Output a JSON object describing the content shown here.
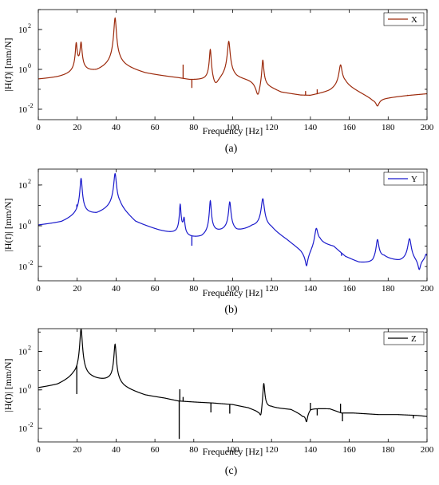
{
  "chart_data": [
    {
      "type": "line",
      "caption": "(a)",
      "xlabel": "Frequency [Hz]",
      "ylabel": "|H(f)| [mm/N]",
      "xlim": [
        0,
        200
      ],
      "ylim": [
        0.003,
        1000
      ],
      "yscale": "log",
      "xticks": [
        "0",
        "20",
        "40",
        "60",
        "80",
        "100",
        "120",
        "140",
        "160",
        "180",
        "200"
      ],
      "yticks": [
        {
          "base": "10",
          "exp": "2",
          "value": 100
        },
        {
          "base": "10",
          "exp": "0",
          "value": 1
        },
        {
          "base": "10",
          "exp": "-2",
          "value": 0.01
        }
      ],
      "grid": false,
      "legend_position": "top-right",
      "series": [
        {
          "name": "X",
          "color": "#9c2a0c",
          "baseline": [
            [
              0,
              0.25
            ],
            [
              10,
              0.28
            ],
            [
              30,
              0.45
            ],
            [
              38,
              0.9
            ],
            [
              42,
              0.9
            ],
            [
              55,
              0.45
            ],
            [
              72,
              0.28
            ],
            [
              78,
              0.22
            ],
            [
              86,
              0.2
            ],
            [
              92,
              0.2
            ],
            [
              97,
              0.3
            ],
            [
              102,
              0.25
            ],
            [
              112,
              0.25
            ],
            [
              118,
              0.12
            ],
            [
              125,
              0.06
            ],
            [
              135,
              0.042
            ],
            [
              140,
              0.04
            ],
            [
              150,
              0.06
            ],
            [
              158,
              0.12
            ],
            [
              165,
              0.06
            ],
            [
              172,
              0.03
            ],
            [
              180,
              0.035
            ],
            [
              190,
              0.045
            ],
            [
              200,
              0.055
            ]
          ],
          "features": [
            {
              "type": "peak",
              "f": 19.5,
              "a": 9,
              "w": 0.45
            },
            {
              "type": "peak",
              "f": 22,
              "a": 10,
              "w": 0.5
            },
            {
              "type": "peak",
              "f": 39.5,
              "a": 300,
              "w": 0.7
            },
            {
              "type": "spike",
              "f": 74.5,
              "a": 1.4
            },
            {
              "type": "spike",
              "f": 79,
              "a": 0.1
            },
            {
              "type": "peak",
              "f": 88.5,
              "a": 12,
              "w": 0.5
            },
            {
              "type": "antires",
              "f": 91,
              "a": 0.06,
              "w": 1.5
            },
            {
              "type": "peak",
              "f": 98,
              "a": 25,
              "w": 0.7
            },
            {
              "type": "antires",
              "f": 113,
              "a": 0.02,
              "w": 1.2
            },
            {
              "type": "peak",
              "f": 115.5,
              "a": 6,
              "w": 0.5
            },
            {
              "type": "spike",
              "f": 137.5,
              "a": 0.07
            },
            {
              "type": "spike",
              "f": 143.5,
              "a": 0.08
            },
            {
              "type": "peak",
              "f": 155.5,
              "a": 1.6,
              "w": 0.8
            },
            {
              "type": "antires",
              "f": 174.5,
              "a": 0.012,
              "w": 0.8
            },
            {
              "type": "spike",
              "f": 187,
              "a": 0.045
            },
            {
              "type": "spike",
              "f": 190,
              "a": 0.05
            }
          ]
        }
      ]
    },
    {
      "type": "line",
      "caption": "(b)",
      "xlabel": "Frequency [Hz]",
      "ylabel": "|H(f)| [mm/N]",
      "xlim": [
        0,
        200
      ],
      "ylim": [
        0.002,
        600
      ],
      "yscale": "log",
      "xticks": [
        "0",
        "20",
        "40",
        "60",
        "80",
        "100",
        "120",
        "140",
        "160",
        "180",
        "200"
      ],
      "yticks": [
        {
          "base": "10",
          "exp": "2",
          "value": 100
        },
        {
          "base": "10",
          "exp": "0",
          "value": 1
        },
        {
          "base": "10",
          "exp": "-2",
          "value": 0.01
        }
      ],
      "grid": false,
      "legend_position": "top-right",
      "series": [
        {
          "name": "Y",
          "color": "#1a1acc",
          "baseline": [
            [
              0,
              0.8
            ],
            [
              12,
              1.0
            ],
            [
              20,
              1.8
            ],
            [
              30,
              2.0
            ],
            [
              38,
              4
            ],
            [
              42,
              4
            ],
            [
              50,
              0.9
            ],
            [
              62,
              0.35
            ],
            [
              70,
              0.2
            ],
            [
              76,
              0.12
            ],
            [
              84,
              0.12
            ],
            [
              90,
              0.18
            ],
            [
              96,
              0.22
            ],
            [
              102,
              0.22
            ],
            [
              110,
              0.4
            ],
            [
              120,
              0.35
            ],
            [
              128,
              0.12
            ],
            [
              135,
              0.04
            ],
            [
              138,
              0.02
            ],
            [
              145,
              0.08
            ],
            [
              152,
              0.06
            ],
            [
              158,
              0.02
            ],
            [
              165,
              0.01
            ],
            [
              172,
              0.008
            ],
            [
              178,
              0.015
            ],
            [
              186,
              0.01
            ],
            [
              192,
              0.01
            ],
            [
              200,
              0.015
            ]
          ],
          "features": [
            {
              "type": "spike",
              "f": 19.8,
              "a": 2.5
            },
            {
              "type": "peak",
              "f": 22,
              "a": 150,
              "w": 0.6
            },
            {
              "type": "peak",
              "f": 39.5,
              "a": 250,
              "w": 0.7
            },
            {
              "type": "peak",
              "f": 73,
              "a": 5,
              "w": 0.4
            },
            {
              "type": "peak",
              "f": 75,
              "a": 0.8,
              "w": 0.4
            },
            {
              "type": "spike",
              "f": 79,
              "a": 0.07
            },
            {
              "type": "peak",
              "f": 88.5,
              "a": 9,
              "w": 0.5
            },
            {
              "type": "peak",
              "f": 98.5,
              "a": 8,
              "w": 0.6
            },
            {
              "type": "peak",
              "f": 115.5,
              "a": 14,
              "w": 0.8
            },
            {
              "type": "antires",
              "f": 138,
              "a": 0.005,
              "w": 0.6
            },
            {
              "type": "peak",
              "f": 143,
              "a": 0.6,
              "w": 0.8
            },
            {
              "type": "spike",
              "f": 156,
              "a": 0.03
            },
            {
              "type": "peak",
              "f": 174.5,
              "a": 0.15,
              "w": 0.7
            },
            {
              "type": "peak",
              "f": 191,
              "a": 0.2,
              "w": 0.9
            },
            {
              "type": "antires",
              "f": 196,
              "a": 0.003,
              "w": 0.6
            },
            {
              "type": "peak",
              "f": 199.5,
              "a": 0.03,
              "w": 0.5
            }
          ]
        }
      ]
    },
    {
      "type": "line",
      "caption": "(c)",
      "xlabel": "Frequency [Hz]",
      "ylabel": "|H(f)| [mm/N]",
      "xlim": [
        0,
        200
      ],
      "ylim": [
        0.002,
        1500
      ],
      "yscale": "log",
      "xticks": [
        "0",
        "20",
        "40",
        "60",
        "80",
        "100",
        "120",
        "140",
        "160",
        "180",
        "200"
      ],
      "yticks": [
        {
          "base": "10",
          "exp": "2",
          "value": 100
        },
        {
          "base": "10",
          "exp": "0",
          "value": 1
        },
        {
          "base": "10",
          "exp": "-2",
          "value": 0.01
        }
      ],
      "grid": false,
      "legend_position": "top-right",
      "series": [
        {
          "name": "Z",
          "color": "#000000",
          "baseline": [
            [
              0,
              1.0
            ],
            [
              10,
              1.3
            ],
            [
              18,
              2.5
            ],
            [
              28,
              2.0
            ],
            [
              36,
              1.5
            ],
            [
              44,
              0.8
            ],
            [
              55,
              0.4
            ],
            [
              65,
              0.3
            ],
            [
              72,
              0.22
            ],
            [
              80,
              0.2
            ],
            [
              90,
              0.18
            ],
            [
              100,
              0.15
            ],
            [
              108,
              0.1
            ],
            [
              113,
              0.06
            ],
            [
              120,
              0.1
            ],
            [
              130,
              0.09
            ],
            [
              136,
              0.05
            ],
            [
              140,
              0.11
            ],
            [
              150,
              0.1
            ],
            [
              156,
              0.06
            ],
            [
              162,
              0.06
            ],
            [
              175,
              0.05
            ],
            [
              185,
              0.05
            ],
            [
              195,
              0.045
            ],
            [
              200,
              0.04
            ]
          ],
          "features": [
            {
              "type": "spike",
              "f": 19.8,
              "a": 0.08
            },
            {
              "type": "peak",
              "f": 22,
              "a": 1200,
              "w": 0.7
            },
            {
              "type": "peak",
              "f": 39.5,
              "a": 180,
              "w": 0.6
            },
            {
              "type": "spike",
              "f": 72.5,
              "a": 0.003
            },
            {
              "type": "spike",
              "f": 72.8,
              "a": 1.0
            },
            {
              "type": "spike",
              "f": 74.5,
              "a": 0.4
            },
            {
              "type": "spike",
              "f": 88.8,
              "a": 0.07
            },
            {
              "type": "spike",
              "f": 98.5,
              "a": 0.06
            },
            {
              "type": "antires",
              "f": 114.5,
              "a": 0.015,
              "w": 0.6
            },
            {
              "type": "peak",
              "f": 116,
              "a": 3.5,
              "w": 0.5
            },
            {
              "type": "antires",
              "f": 138,
              "a": 0.02,
              "w": 0.5
            },
            {
              "type": "spike",
              "f": 140,
              "a": 0.2
            },
            {
              "type": "spike",
              "f": 143.5,
              "a": 0.05
            },
            {
              "type": "spike",
              "f": 155.5,
              "a": 0.18
            },
            {
              "type": "spike",
              "f": 156.5,
              "a": 0.025
            },
            {
              "type": "spike",
              "f": 193,
              "a": 0.035
            }
          ]
        }
      ]
    }
  ]
}
